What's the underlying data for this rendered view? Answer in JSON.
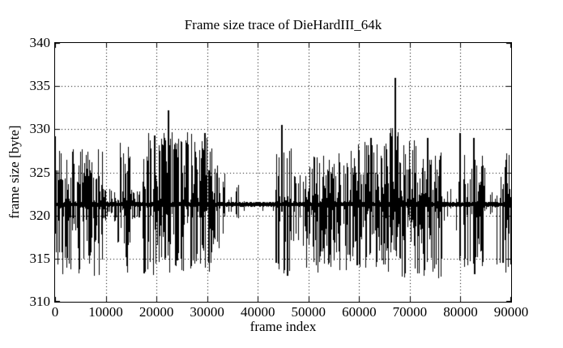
{
  "colors": {
    "background": "#ffffff",
    "foreground": "#000000",
    "trace": "#000000",
    "grid": "#000000"
  },
  "chart_data": {
    "type": "line",
    "title": "Frame size trace of DieHardIII_64k",
    "xlabel": "frame index",
    "ylabel": "frame size [byte]",
    "xlim": [
      0,
      90000
    ],
    "ylim": [
      310,
      340
    ],
    "xticks": [
      0,
      10000,
      20000,
      30000,
      40000,
      50000,
      60000,
      70000,
      80000,
      90000
    ],
    "yticks": [
      310,
      315,
      320,
      325,
      330,
      335,
      340
    ],
    "grid": "dotted",
    "legend": "none",
    "note": "Dense noisy single-series trace of ~90000 frame sizes. 'segments' give the envelope [x0,x1,up,dn,density] of the oscillation around the baseline; 'spikes' are prominent isolated peaks/dips read off the plot.",
    "baseline": 321.3,
    "segments": [
      {
        "x0": 0,
        "x1": 1200,
        "up": 329.0,
        "dn": 314.0,
        "p": 0.9
      },
      {
        "x0": 1200,
        "x1": 9400,
        "up": 327.5,
        "dn": 313.3,
        "p": 0.82
      },
      {
        "x0": 9400,
        "x1": 12300,
        "up": 323.0,
        "dn": 319.5,
        "p": 0.7
      },
      {
        "x0": 12300,
        "x1": 14800,
        "up": 328.5,
        "dn": 313.0,
        "p": 0.85
      },
      {
        "x0": 14800,
        "x1": 17100,
        "up": 322.7,
        "dn": 319.6,
        "p": 0.65
      },
      {
        "x0": 17100,
        "x1": 23500,
        "up": 329.5,
        "dn": 313.2,
        "p": 0.85
      },
      {
        "x0": 23500,
        "x1": 31000,
        "up": 329.5,
        "dn": 313.5,
        "p": 0.85
      },
      {
        "x0": 31000,
        "x1": 33600,
        "up": 326.0,
        "dn": 315.0,
        "p": 0.7
      },
      {
        "x0": 33600,
        "x1": 35500,
        "up": 322.0,
        "dn": 320.6,
        "p": 0.3
      },
      {
        "x0": 35500,
        "x1": 36500,
        "up": 323.5,
        "dn": 318.0,
        "p": 0.7
      },
      {
        "x0": 36500,
        "x1": 43500,
        "up": 322.2,
        "dn": 320.6,
        "p": 0.12
      },
      {
        "x0": 43500,
        "x1": 46700,
        "up": 328.0,
        "dn": 313.5,
        "p": 0.5
      },
      {
        "x0": 46700,
        "x1": 49500,
        "up": 324.5,
        "dn": 316.5,
        "p": 0.5
      },
      {
        "x0": 49500,
        "x1": 59500,
        "up": 327.5,
        "dn": 313.5,
        "p": 0.78
      },
      {
        "x0": 59500,
        "x1": 66000,
        "up": 328.5,
        "dn": 313.5,
        "p": 0.85
      },
      {
        "x0": 66000,
        "x1": 68300,
        "up": 330.0,
        "dn": 314.0,
        "p": 0.8
      },
      {
        "x0": 68300,
        "x1": 76300,
        "up": 328.5,
        "dn": 312.8,
        "p": 0.9
      },
      {
        "x0": 76300,
        "x1": 79400,
        "up": 323.0,
        "dn": 316.0,
        "p": 0.28
      },
      {
        "x0": 79400,
        "x1": 80400,
        "up": 329.5,
        "dn": 314.0,
        "p": 0.7
      },
      {
        "x0": 80400,
        "x1": 85100,
        "up": 327.0,
        "dn": 314.0,
        "p": 0.65
      },
      {
        "x0": 85100,
        "x1": 87000,
        "up": 322.5,
        "dn": 320.0,
        "p": 0.4
      },
      {
        "x0": 87000,
        "x1": 90000,
        "up": 327.5,
        "dn": 313.5,
        "p": 0.65
      }
    ],
    "spikes": [
      {
        "x": 19700,
        "v": 329.3
      },
      {
        "x": 22400,
        "v": 332.2
      },
      {
        "x": 29600,
        "v": 329.6
      },
      {
        "x": 43600,
        "v": 314.5
      },
      {
        "x": 44800,
        "v": 330.5
      },
      {
        "x": 45900,
        "v": 313.0
      },
      {
        "x": 62300,
        "v": 329.0
      },
      {
        "x": 67200,
        "v": 336.0
      },
      {
        "x": 73500,
        "v": 329.0
      },
      {
        "x": 76000,
        "v": 326.5
      },
      {
        "x": 76300,
        "v": 315.0
      },
      {
        "x": 79900,
        "v": 329.6
      },
      {
        "x": 82600,
        "v": 329.0
      },
      {
        "x": 82800,
        "v": 313.2
      },
      {
        "x": 88400,
        "v": 314.5
      }
    ]
  }
}
